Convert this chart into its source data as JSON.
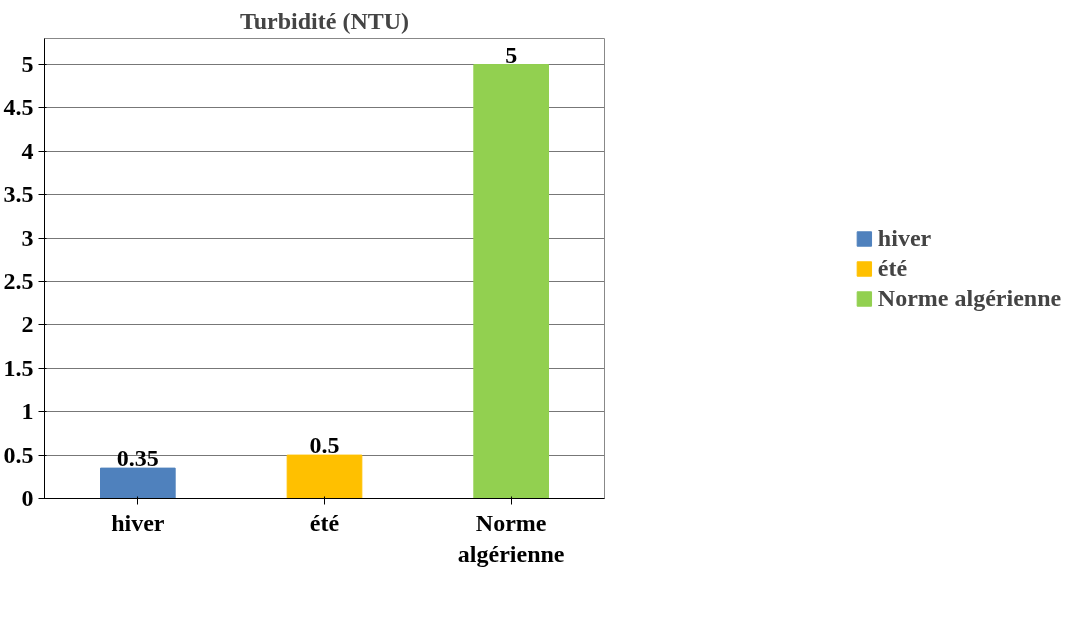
{
  "chart_data": {
    "type": "bar",
    "title": "Turbidité (NTU)",
    "categories": [
      "hiver",
      "été",
      "Norme algérienne"
    ],
    "series": [
      {
        "name": "hiver",
        "color": "#4f81bd",
        "values": [
          0.35,
          null,
          null
        ]
      },
      {
        "name": "été",
        "color": "#ffc000",
        "values": [
          null,
          0.5,
          null
        ]
      },
      {
        "name": "Norme algérienne",
        "color": "#92d050",
        "values": [
          null,
          null,
          5
        ]
      }
    ],
    "ylim": [
      0,
      5
    ],
    "yticks": [
      0,
      0.5,
      1,
      1.5,
      2,
      2.5,
      3,
      3.5,
      4,
      4.5,
      5
    ],
    "grid": "y",
    "legend": "right",
    "data_labels": true
  }
}
